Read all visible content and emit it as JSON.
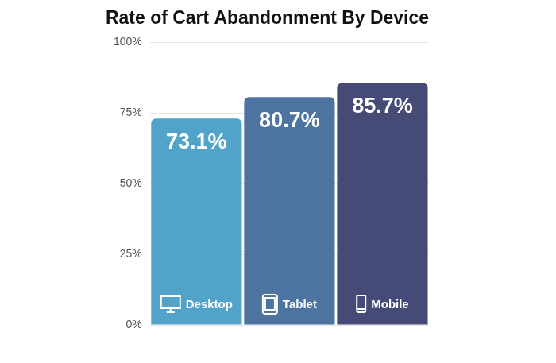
{
  "chart_data": {
    "type": "bar",
    "title": "Rate of Cart Abandonment By Device",
    "categories": [
      "Desktop",
      "Tablet",
      "Mobile"
    ],
    "values": [
      73.1,
      80.7,
      85.7
    ],
    "value_labels": [
      "73.1%",
      "80.7%",
      "85.7%"
    ],
    "colors": [
      "#52a3c9",
      "#4d74a1",
      "#464a76"
    ],
    "ylim": [
      0,
      100
    ],
    "yticks": [
      {
        "value": 0,
        "label": "0%"
      },
      {
        "value": 25,
        "label": "25%"
      },
      {
        "value": 50,
        "label": "50%"
      },
      {
        "value": 75,
        "label": "75%"
      },
      {
        "value": 100,
        "label": "100%"
      }
    ],
    "grid": true,
    "data_labels": true,
    "tick_labels": "y"
  }
}
